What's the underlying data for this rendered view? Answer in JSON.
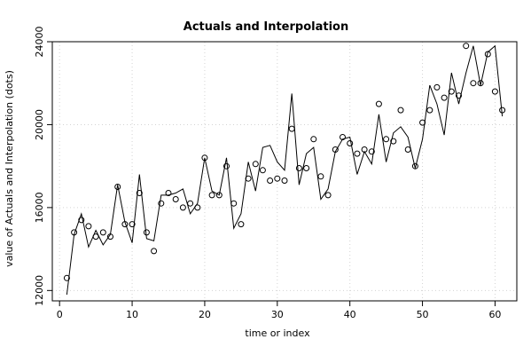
{
  "chart_data": {
    "type": "line",
    "title": "Actuals and Interpolation",
    "xlabel": "time or index",
    "ylabel": "value of Actuals and Interpolation (dots)",
    "xlim": [
      -1,
      63
    ],
    "ylim": [
      11500,
      24000
    ],
    "x_ticks": [
      0,
      10,
      20,
      30,
      40,
      50,
      60
    ],
    "y_ticks": [
      12000,
      16000,
      20000,
      24000
    ],
    "grid": true,
    "series": [
      {
        "style": "line",
        "color": "#000000",
        "x": [
          1,
          2,
          3,
          4,
          5,
          6,
          7,
          8,
          9,
          10,
          11,
          12,
          13,
          14,
          15,
          16,
          17,
          18,
          19,
          20,
          21,
          22,
          23,
          24,
          25,
          26,
          27,
          28,
          29,
          30,
          31,
          32,
          33,
          34,
          35,
          36,
          37,
          38,
          39,
          40,
          41,
          42,
          43,
          44,
          45,
          46,
          47,
          48,
          49,
          50,
          51,
          52,
          53,
          54,
          55,
          56,
          57,
          58,
          59,
          60,
          61
        ],
        "y": [
          11800,
          14700,
          15700,
          14100,
          14900,
          14200,
          14700,
          17100,
          15300,
          14300,
          17600,
          14500,
          14400,
          16600,
          16600,
          16700,
          16900,
          15700,
          16200,
          18400,
          16800,
          16600,
          18400,
          15000,
          15700,
          18200,
          16800,
          18900,
          19000,
          18200,
          17800,
          21500,
          17100,
          18600,
          18900,
          16400,
          16900,
          18700,
          19300,
          19400,
          17600,
          18700,
          18100,
          20500,
          18200,
          19600,
          19900,
          19400,
          17900,
          19300,
          21900,
          21000,
          19500,
          22500,
          21000,
          22500,
          23800,
          21900,
          23500,
          23800,
          20400
        ]
      },
      {
        "style": "points",
        "color": "#000000",
        "x": [
          1,
          2,
          3,
          4,
          5,
          6,
          7,
          8,
          9,
          10,
          11,
          12,
          13,
          14,
          15,
          16,
          17,
          18,
          19,
          20,
          21,
          22,
          23,
          24,
          25,
          26,
          27,
          28,
          29,
          30,
          31,
          32,
          33,
          34,
          35,
          36,
          37,
          38,
          39,
          40,
          41,
          42,
          43,
          44,
          45,
          46,
          47,
          48,
          49,
          50,
          51,
          52,
          53,
          54,
          55,
          56,
          57,
          58,
          59,
          60,
          61
        ],
        "y": [
          12600,
          14800,
          15400,
          15100,
          14600,
          14800,
          14600,
          17000,
          15200,
          15200,
          16700,
          14800,
          13900,
          16200,
          16700,
          16400,
          16000,
          16200,
          16000,
          18400,
          16600,
          16600,
          18000,
          16200,
          15200,
          17400,
          18100,
          17800,
          17300,
          17400,
          17300,
          19800,
          17900,
          17900,
          19300,
          17500,
          16600,
          18800,
          19400,
          19100,
          18600,
          18800,
          18700,
          21000,
          19300,
          19200,
          20700,
          18800,
          18000,
          20100,
          20700,
          21800,
          21300,
          21600,
          21400,
          23800,
          22000,
          22000,
          23400,
          21600,
          20700
        ]
      }
    ]
  }
}
